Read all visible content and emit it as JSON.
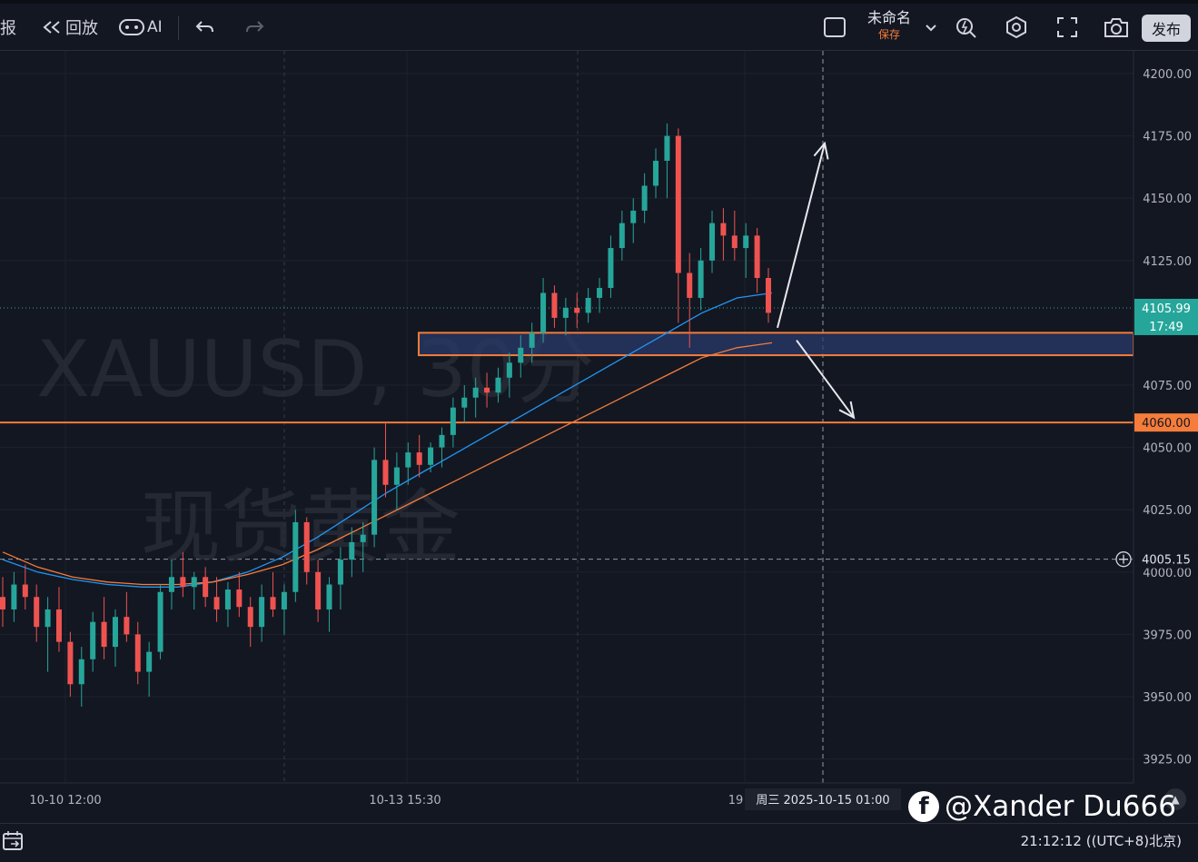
{
  "toolbar": {
    "report_label": "报",
    "replay_label": "回放",
    "ai_label": "AI",
    "chart_name": "未命名",
    "save_status": "保存",
    "publish_label": "发布"
  },
  "watermark": {
    "symbol": "XAUUSD, 30分",
    "name": "现货黄金"
  },
  "brand_watermark": "@Xander Du666",
  "price_axis": {
    "ticks": [
      "4200.00",
      "4175.00",
      "4150.00",
      "4125.00",
      "4075.00",
      "4050.00",
      "4025.00",
      "4000.00",
      "3975.00",
      "3950.00",
      "3925.00"
    ],
    "tick_values": [
      4200,
      4175,
      4150,
      4125,
      4075,
      4050,
      4025,
      4000,
      3975,
      3950,
      3925
    ],
    "current_price": "4105.99",
    "countdown": "17:49",
    "level_label": "4060.00",
    "crosshair_price": "4005.15"
  },
  "time_axis": {
    "labels": [
      "10-10 12:00",
      "10-13 15:30",
      "19"
    ],
    "crosshair_time": "周三 2025-10-15  01:00"
  },
  "status": {
    "clock": "21:12:12 ((UTC+8)北京)"
  },
  "chart_data": {
    "type": "candlestick",
    "symbol": "XAUUSD",
    "ylim": [
      3915,
      4210
    ],
    "candles": [
      [
        3990,
        3998,
        3978,
        3985
      ],
      [
        3985,
        4000,
        3980,
        3995
      ],
      [
        3995,
        4003,
        3985,
        3990
      ],
      [
        3990,
        3995,
        3972,
        3978
      ],
      [
        3978,
        3990,
        3960,
        3985
      ],
      [
        3985,
        3994,
        3968,
        3972
      ],
      [
        3972,
        3976,
        3950,
        3955
      ],
      [
        3955,
        3970,
        3946,
        3965
      ],
      [
        3965,
        3984,
        3960,
        3980
      ],
      [
        3980,
        3990,
        3965,
        3970
      ],
      [
        3970,
        3985,
        3962,
        3982
      ],
      [
        3982,
        3992,
        3972,
        3975
      ],
      [
        3975,
        3980,
        3955,
        3960
      ],
      [
        3960,
        3972,
        3950,
        3968
      ],
      [
        3968,
        3995,
        3965,
        3992
      ],
      [
        3992,
        4005,
        3985,
        3998
      ],
      [
        3998,
        4008,
        3990,
        3994
      ],
      [
        3994,
        4000,
        3985,
        3998
      ],
      [
        3998,
        4002,
        3986,
        3990
      ],
      [
        3990,
        3998,
        3980,
        3985
      ],
      [
        3985,
        3996,
        3978,
        3993
      ],
      [
        3993,
        4000,
        3982,
        3986
      ],
      [
        3986,
        3990,
        3970,
        3978
      ],
      [
        3978,
        3995,
        3972,
        3990
      ],
      [
        3990,
        4000,
        3982,
        3985
      ],
      [
        3985,
        3995,
        3975,
        3992
      ],
      [
        3992,
        4025,
        3988,
        4020
      ],
      [
        4020,
        4022,
        3995,
        4000
      ],
      [
        4000,
        4005,
        3980,
        3985
      ],
      [
        3985,
        3998,
        3976,
        3995
      ],
      [
        3995,
        4010,
        3985,
        4005
      ],
      [
        4005,
        4018,
        3998,
        4012
      ],
      [
        4012,
        4020,
        4000,
        4015
      ],
      [
        4015,
        4050,
        4010,
        4045
      ],
      [
        4045,
        4060,
        4030,
        4035
      ],
      [
        4035,
        4048,
        4025,
        4042
      ],
      [
        4042,
        4052,
        4035,
        4048
      ],
      [
        4048,
        4055,
        4038,
        4043
      ],
      [
        4043,
        4052,
        4040,
        4050
      ],
      [
        4050,
        4058,
        4042,
        4055
      ],
      [
        4055,
        4070,
        4050,
        4066
      ],
      [
        4066,
        4075,
        4060,
        4070
      ],
      [
        4070,
        4078,
        4062,
        4074
      ],
      [
        4074,
        4080,
        4066,
        4072
      ],
      [
        4072,
        4082,
        4068,
        4078
      ],
      [
        4078,
        4088,
        4070,
        4084
      ],
      [
        4084,
        4095,
        4078,
        4090
      ],
      [
        4090,
        4100,
        4084,
        4096
      ],
      [
        4096,
        4118,
        4092,
        4112
      ],
      [
        4112,
        4115,
        4098,
        4102
      ],
      [
        4102,
        4110,
        4095,
        4106
      ],
      [
        4106,
        4112,
        4098,
        4104
      ],
      [
        4104,
        4114,
        4100,
        4110
      ],
      [
        4110,
        4118,
        4104,
        4114
      ],
      [
        4114,
        4135,
        4110,
        4130
      ],
      [
        4130,
        4145,
        4125,
        4140
      ],
      [
        4140,
        4150,
        4132,
        4145
      ],
      [
        4145,
        4160,
        4140,
        4155
      ],
      [
        4155,
        4170,
        4150,
        4165
      ],
      [
        4165,
        4180,
        4150,
        4175
      ],
      [
        4175,
        4178,
        4100,
        4120
      ],
      [
        4120,
        4128,
        4090,
        4110
      ],
      [
        4110,
        4130,
        4105,
        4125
      ],
      [
        4125,
        4145,
        4120,
        4140
      ],
      [
        4140,
        4146,
        4125,
        4135
      ],
      [
        4135,
        4145,
        4125,
        4130
      ],
      [
        4130,
        4140,
        4118,
        4135
      ],
      [
        4135,
        4138,
        4112,
        4118
      ],
      [
        4118,
        4122,
        4100,
        4104
      ]
    ],
    "series": [
      {
        "name": "MA fast",
        "values": [
          4005,
          4000,
          3997,
          3995,
          3994,
          3994,
          3996,
          4000,
          4006,
          4014,
          4023,
          4032,
          4040,
          4048,
          4056,
          4064,
          4072,
          4080,
          4088,
          4096,
          4104,
          4110,
          4112
        ]
      },
      {
        "name": "MA slow",
        "values": [
          4008,
          4002,
          3998,
          3996,
          3995,
          3995,
          3996,
          3999,
          4003,
          4009,
          4016,
          4023,
          4030,
          4037,
          4044,
          4051,
          4058,
          4065,
          4072,
          4079,
          4086,
          4090,
          4092
        ]
      }
    ],
    "zones": [
      {
        "low": 4087,
        "high": 4096
      }
    ],
    "levels": [
      4060
    ],
    "arrows": [
      {
        "from": 4098,
        "to": 4172
      },
      {
        "from": 4093,
        "to": 4062
      }
    ],
    "colors": {
      "up": "#26a69a",
      "down": "#ef5350",
      "ma_fast": "#2196f3",
      "ma_slow": "#f57c3a",
      "zone_fill": "#2a3a6a",
      "zone_border": "#f57c3a",
      "level": "#f57c3a",
      "current": "#26a69a"
    }
  }
}
